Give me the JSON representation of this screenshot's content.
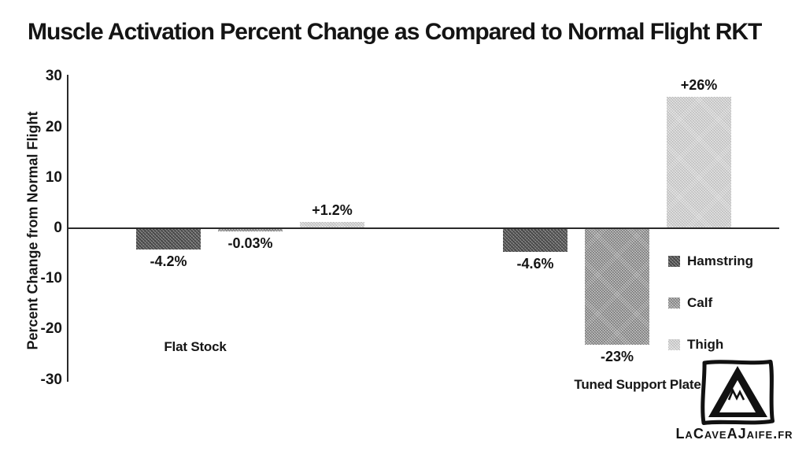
{
  "page": {
    "watermark": "LaCaveAJaife.fr"
  },
  "chart_data": {
    "type": "bar",
    "title": "Muscle Activation Percent Change as Compared to Normal Flight RKT",
    "xlabel": "",
    "ylabel": "Percent Change from Normal Flight",
    "ylim": [
      -30,
      30
    ],
    "yticks": [
      30,
      20,
      10,
      0,
      -10,
      -20,
      -30
    ],
    "grid": false,
    "legend_position": "right-inside",
    "categories": [
      "Flat Stock",
      "Tuned Support Plate"
    ],
    "series": [
      {
        "name": "Hamstring",
        "pattern": "hamstring",
        "color": "#7a7a7a",
        "values": [
          -4.2,
          -4.6
        ],
        "data_labels": [
          "-4.2%",
          "-4.6%"
        ]
      },
      {
        "name": "Calf",
        "pattern": "calf",
        "color": "#b4b4b4",
        "values": [
          -0.03,
          -23
        ],
        "data_labels": [
          "-0.03%",
          "-23%"
        ]
      },
      {
        "name": "Thigh",
        "pattern": "thigh",
        "color": "#e0e0e0",
        "values": [
          1.2,
          26
        ],
        "data_labels": [
          "+1.2%",
          "+26%"
        ]
      }
    ]
  }
}
